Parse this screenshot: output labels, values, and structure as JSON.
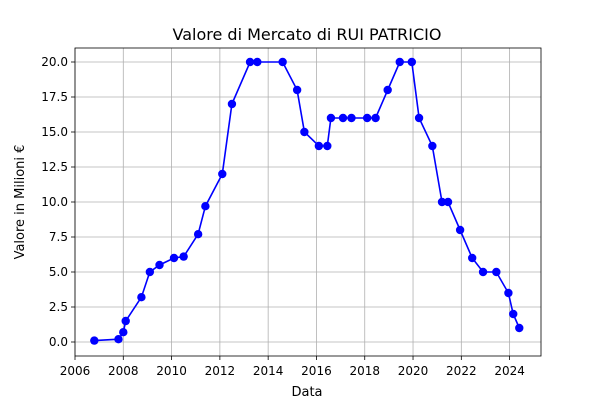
{
  "chart_data": {
    "type": "line",
    "title": "Valore di Mercato di RUI PATRICIO",
    "xlabel": "Data",
    "ylabel": "Valore in Milioni €",
    "xlim": [
      2006.0,
      2025.3
    ],
    "ylim": [
      -1.0,
      21.0
    ],
    "xticks": [
      2006,
      2008,
      2010,
      2012,
      2014,
      2016,
      2018,
      2020,
      2022,
      2024
    ],
    "xtick_labels": [
      "2006",
      "2008",
      "2010",
      "2012",
      "2014",
      "2016",
      "2018",
      "2020",
      "2022",
      "2024"
    ],
    "yticks": [
      0.0,
      2.5,
      5.0,
      7.5,
      10.0,
      12.5,
      15.0,
      17.5,
      20.0
    ],
    "ytick_labels": [
      "0.0",
      "2.5",
      "5.0",
      "7.5",
      "10.0",
      "12.5",
      "15.0",
      "17.5",
      "20.0"
    ],
    "grid": true,
    "series_color": "#0000ff",
    "marker": "circle",
    "x": [
      2006.8,
      2007.8,
      2008.0,
      2008.1,
      2008.75,
      2009.1,
      2009.5,
      2010.1,
      2010.5,
      2011.1,
      2011.4,
      2012.1,
      2012.5,
      2013.25,
      2013.55,
      2014.6,
      2015.2,
      2015.5,
      2016.1,
      2016.45,
      2016.6,
      2017.1,
      2017.45,
      2018.1,
      2018.45,
      2018.95,
      2019.45,
      2019.95,
      2020.25,
      2020.8,
      2021.2,
      2021.45,
      2021.95,
      2022.45,
      2022.9,
      2023.45,
      2023.95,
      2024.15,
      2024.4
    ],
    "y": [
      0.1,
      0.2,
      0.7,
      1.5,
      3.2,
      5.0,
      5.5,
      6.0,
      6.1,
      7.7,
      9.7,
      12.0,
      17.0,
      20.0,
      20.0,
      20.0,
      18.0,
      15.0,
      14.0,
      14.0,
      16.0,
      16.0,
      16.0,
      16.0,
      16.0,
      18.0,
      20.0,
      20.0,
      16.0,
      14.0,
      10.0,
      10.0,
      8.0,
      6.0,
      5.0,
      5.0,
      3.5,
      2.0,
      1.0
    ]
  }
}
